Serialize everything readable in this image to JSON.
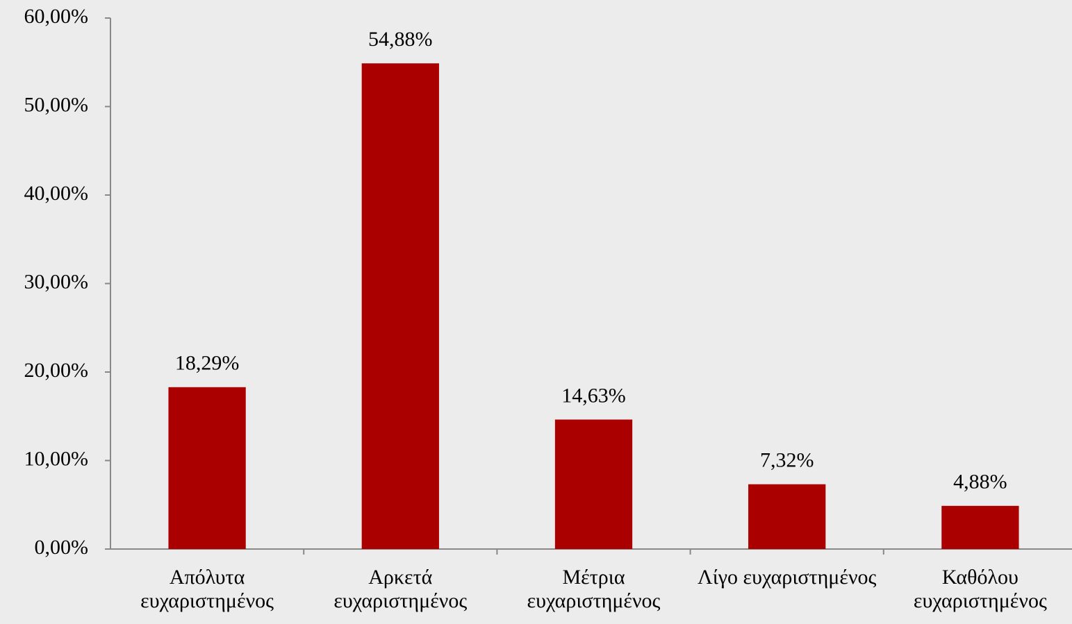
{
  "chart_data": {
    "type": "bar",
    "categories": [
      "Απόλυτα ευχαριστημένος",
      "Αρκετά ευχαριστημένος",
      "Μέτρια ευχαριστημένος",
      "Λίγο ευχαριστημένος",
      "Καθόλου ευχαριστημένος"
    ],
    "values": [
      18.29,
      54.88,
      14.63,
      7.32,
      4.88
    ],
    "value_labels": [
      "18,29%",
      "54,88%",
      "14,63%",
      "7,32%",
      "4,88%"
    ],
    "color": "#aa0000",
    "ylim": [
      0,
      60
    ],
    "yticks": [
      {
        "value": 0,
        "label": "0,00%"
      },
      {
        "value": 10,
        "label": "10,00%"
      },
      {
        "value": 20,
        "label": "20,00%"
      },
      {
        "value": 30,
        "label": "30,00%"
      },
      {
        "value": 40,
        "label": "40,00%"
      },
      {
        "value": 50,
        "label": "50,00%"
      },
      {
        "value": 60,
        "label": "60,00%"
      }
    ],
    "grid": false
  }
}
